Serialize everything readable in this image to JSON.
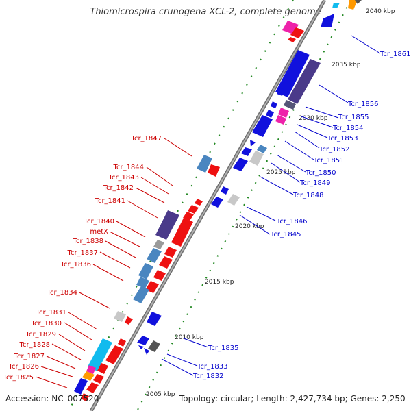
{
  "map": {
    "title": "Thiomicrospira crunogena XCL-2, complete genome",
    "accession": "Accession: NC_007520",
    "summary": "Topology: circular; Length: 2,427,734 bp; Genes: 2,250",
    "colors": {
      "backbone": "#8a8a8a",
      "forward_label": "#cc0000",
      "reverse_label": "#0000cc",
      "ticks": "#228822",
      "cds_red": "#ee1111",
      "cds_blue": "#1111dd",
      "cds_steel": "#4a86c0",
      "cds_navy": "#4a3a8a",
      "cds_magenta": "#ee22aa",
      "cds_cyan": "#11bbee",
      "cds_gray": "#9a9a9a",
      "cds_orange": "#ff9900"
    },
    "kbp_labels": [
      "2040 kbp",
      "2035 kbp",
      "2030 kbp",
      "2025 kbp",
      "2020 kbp",
      "2015 kbp",
      "2010 kbp",
      "2005 kbp"
    ],
    "forward_genes": [
      "Tcr_1847",
      "Tcr_1844",
      "Tcr_1843",
      "Tcr_1842",
      "Tcr_1841",
      "Tcr_1840",
      "metX",
      "Tcr_1838",
      "Tcr_1837",
      "Tcr_1836",
      "Tcr_1834",
      "Tcr_1831",
      "Tcr_1830",
      "Tcr_1829",
      "Tcr_1828",
      "Tcr_1827",
      "Tcr_1826",
      "Tcr_1825"
    ],
    "reverse_genes": [
      "Tcr_1861",
      "Tcr_1856",
      "Tcr_1855",
      "Tcr_1854",
      "Tcr_1853",
      "Tcr_1852",
      "Tcr_1851",
      "Tcr_1850",
      "Tcr_1849",
      "Tcr_1848",
      "Tcr_1846",
      "Tcr_1845",
      "Tcr_1835",
      "Tcr_1833",
      "Tcr_1832"
    ]
  }
}
